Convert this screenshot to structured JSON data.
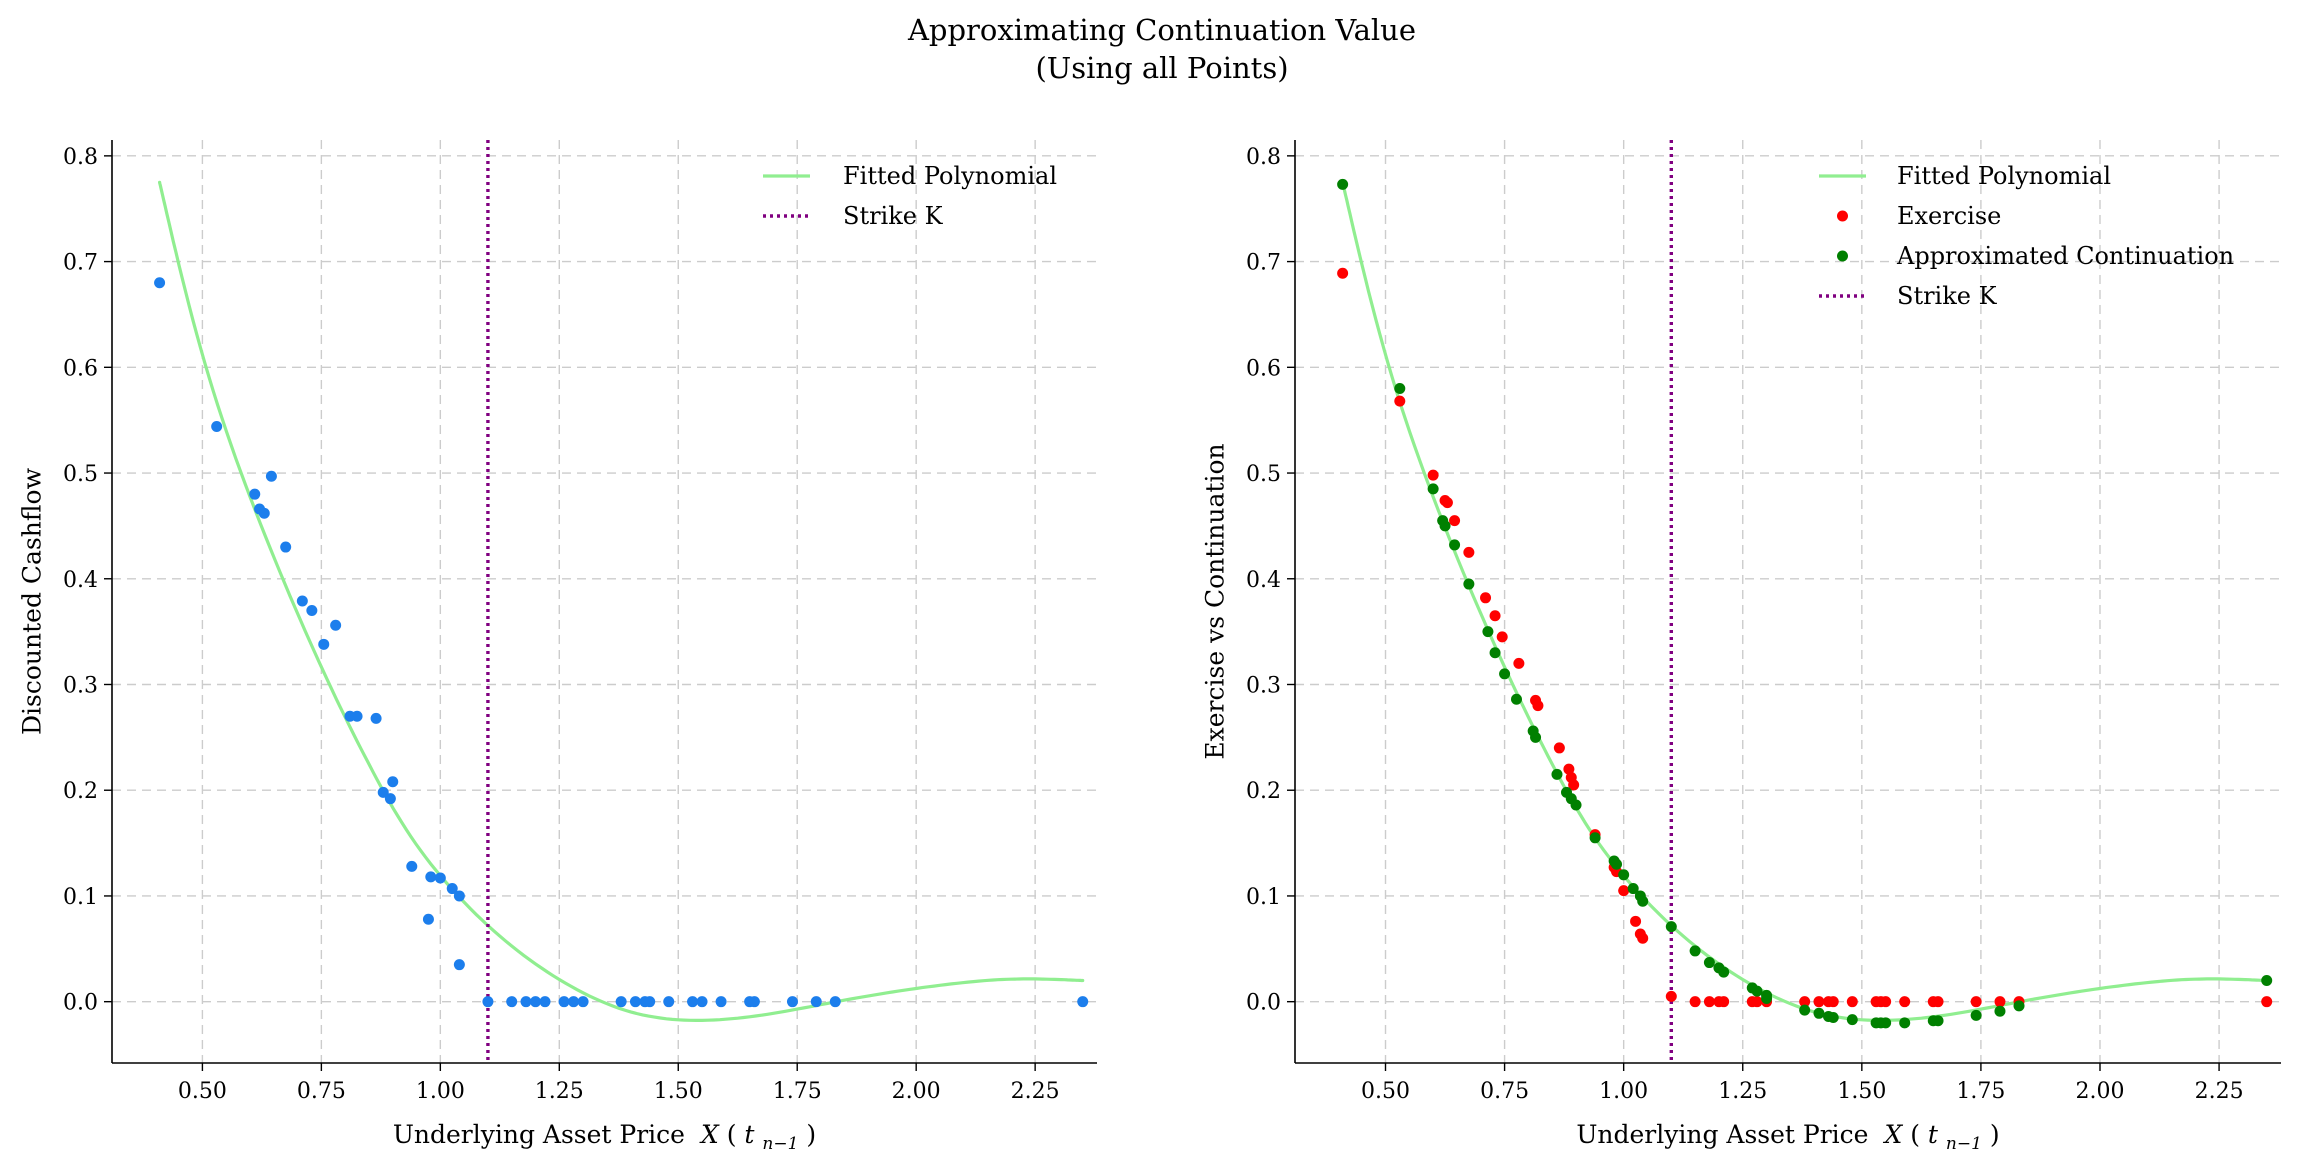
{
  "figure": {
    "title_lines": [
      "Approximating Continuation Value",
      "(Using all Points)"
    ]
  },
  "colors": {
    "fitted": "#90ee90",
    "strike": "#800080",
    "points": "#1c7eec",
    "exercise": "#ff0000",
    "continuation": "#008000",
    "grid": "#cccccc"
  },
  "chart_data": [
    {
      "type": "scatter",
      "xlabel": "Underlying Asset Price",
      "xlabel_math": {
        "var": "X",
        "open": "(",
        "sym": "t",
        "sub": "n−1",
        "close": ")"
      },
      "ylabel": "Discounted Cashflow",
      "xlim": [
        0.31,
        2.38
      ],
      "ylim": [
        -0.058,
        0.815
      ],
      "x_ticks": [
        0.5,
        0.75,
        1.0,
        1.25,
        1.5,
        1.75,
        2.0,
        2.25
      ],
      "x_tick_labels": [
        "0.50",
        "0.75",
        "1.00",
        "1.25",
        "1.50",
        "1.75",
        "2.00",
        "2.25"
      ],
      "y_ticks": [
        0.0,
        0.1,
        0.2,
        0.3,
        0.4,
        0.5,
        0.6,
        0.7,
        0.8
      ],
      "y_tick_labels": [
        "0.0",
        "0.1",
        "0.2",
        "0.3",
        "0.4",
        "0.5",
        "0.6",
        "0.7",
        "0.8"
      ],
      "grid": true,
      "legend_position": "top-right",
      "strike": 1.1,
      "poly": {
        "x_range": [
          0.41,
          2.35
        ]
      },
      "legend": [
        {
          "label": "Fitted Polynomial",
          "kind": "line",
          "color_key": "fitted"
        },
        {
          "label": "Strike K",
          "kind": "dotted",
          "color_key": "strike"
        }
      ],
      "series": [
        {
          "color_key": "points",
          "x": [
            0.41,
            0.53,
            0.61,
            0.62,
            0.63,
            0.645,
            0.675,
            0.71,
            0.73,
            0.755,
            0.78,
            0.81,
            0.825,
            0.865,
            0.88,
            0.895,
            0.9,
            0.94,
            0.975,
            0.98,
            1.0,
            1.025,
            1.04,
            1.04,
            1.1,
            1.15,
            1.18,
            1.2,
            1.22,
            1.26,
            1.28,
            1.3,
            1.38,
            1.41,
            1.43,
            1.44,
            1.48,
            1.53,
            1.55,
            1.59,
            1.65,
            1.66,
            1.74,
            1.79,
            1.83,
            2.35
          ],
          "y": [
            0.68,
            0.544,
            0.48,
            0.466,
            0.462,
            0.497,
            0.43,
            0.379,
            0.37,
            0.338,
            0.356,
            0.27,
            0.27,
            0.268,
            0.198,
            0.192,
            0.208,
            0.128,
            0.078,
            0.118,
            0.117,
            0.107,
            0.1,
            0.035,
            0.0,
            0.0,
            0.0,
            0.0,
            0.0,
            0.0,
            0.0,
            0.0,
            0.0,
            0.0,
            0.0,
            0.0,
            0.0,
            0.0,
            0.0,
            0.0,
            0.0,
            0.0,
            0.0,
            0.0,
            0.0,
            0.0
          ]
        }
      ]
    },
    {
      "type": "scatter",
      "xlabel": "Underlying Asset Price",
      "xlabel_math": {
        "var": "X",
        "open": "(",
        "sym": "t",
        "sub": "n−1",
        "close": ")"
      },
      "ylabel": "Exercise vs Continuation",
      "xlim": [
        0.31,
        2.38
      ],
      "ylim": [
        -0.058,
        0.815
      ],
      "x_ticks": [
        0.5,
        0.75,
        1.0,
        1.25,
        1.5,
        1.75,
        2.0,
        2.25
      ],
      "x_tick_labels": [
        "0.50",
        "0.75",
        "1.00",
        "1.25",
        "1.50",
        "1.75",
        "2.00",
        "2.25"
      ],
      "y_ticks": [
        0.0,
        0.1,
        0.2,
        0.3,
        0.4,
        0.5,
        0.6,
        0.7,
        0.8
      ],
      "y_tick_labels": [
        "0.0",
        "0.1",
        "0.2",
        "0.3",
        "0.4",
        "0.5",
        "0.6",
        "0.7",
        "0.8"
      ],
      "grid": true,
      "legend_position": "top-right",
      "strike": 1.1,
      "poly": {
        "x_range": [
          0.41,
          2.35
        ]
      },
      "legend": [
        {
          "label": "Fitted Polynomial",
          "kind": "line",
          "color_key": "fitted"
        },
        {
          "label": "Exercise",
          "kind": "dot",
          "color_key": "exercise"
        },
        {
          "label": "Approximated Continuation",
          "kind": "dot",
          "color_key": "continuation"
        },
        {
          "label": "Strike K",
          "kind": "dotted",
          "color_key": "strike"
        }
      ],
      "series": [
        {
          "name": "Exercise",
          "color_key": "exercise",
          "x": [
            0.41,
            0.53,
            0.6,
            0.625,
            0.63,
            0.645,
            0.675,
            0.71,
            0.73,
            0.745,
            0.78,
            0.815,
            0.82,
            0.865,
            0.885,
            0.89,
            0.895,
            0.94,
            0.98,
            0.985,
            1.0,
            1.025,
            1.035,
            1.04,
            1.1,
            1.15,
            1.18,
            1.2,
            1.21,
            1.27,
            1.28,
            1.3,
            1.38,
            1.41,
            1.43,
            1.44,
            1.48,
            1.53,
            1.54,
            1.55,
            1.59,
            1.65,
            1.66,
            1.74,
            1.79,
            1.83,
            2.35
          ],
          "y": [
            0.689,
            0.568,
            0.498,
            0.474,
            0.472,
            0.455,
            0.425,
            0.382,
            0.365,
            0.345,
            0.32,
            0.285,
            0.28,
            0.24,
            0.22,
            0.212,
            0.205,
            0.158,
            0.127,
            0.123,
            0.105,
            0.076,
            0.064,
            0.06,
            0.005,
            0.0,
            0.0,
            0.0,
            0.0,
            0.0,
            0.0,
            0.0,
            0.0,
            0.0,
            0.0,
            0.0,
            0.0,
            0.0,
            0.0,
            0.0,
            0.0,
            0.0,
            0.0,
            0.0,
            0.0,
            0.0,
            0.0
          ]
        },
        {
          "name": "Approximated Continuation",
          "color_key": "continuation",
          "x": [
            0.41,
            0.53,
            0.6,
            0.62,
            0.625,
            0.645,
            0.675,
            0.715,
            0.73,
            0.75,
            0.775,
            0.81,
            0.815,
            0.86,
            0.88,
            0.89,
            0.9,
            0.94,
            0.98,
            0.985,
            1.0,
            1.02,
            1.035,
            1.04,
            1.1,
            1.15,
            1.18,
            1.2,
            1.21,
            1.27,
            1.28,
            1.3,
            1.3,
            1.38,
            1.41,
            1.43,
            1.44,
            1.48,
            1.53,
            1.54,
            1.55,
            1.59,
            1.65,
            1.66,
            1.74,
            1.79,
            1.83,
            2.35
          ],
          "y": [
            0.773,
            0.58,
            0.485,
            0.455,
            0.45,
            0.432,
            0.395,
            0.35,
            0.33,
            0.31,
            0.286,
            0.256,
            0.25,
            0.215,
            0.198,
            0.192,
            0.186,
            0.155,
            0.133,
            0.13,
            0.12,
            0.107,
            0.1,
            0.095,
            0.071,
            0.048,
            0.037,
            0.032,
            0.028,
            0.013,
            0.01,
            0.006,
            0.003,
            -0.008,
            -0.011,
            -0.014,
            -0.015,
            -0.017,
            -0.02,
            -0.02,
            -0.02,
            -0.02,
            -0.018,
            -0.018,
            -0.013,
            -0.009,
            -0.004,
            0.02
          ]
        }
      ]
    }
  ]
}
